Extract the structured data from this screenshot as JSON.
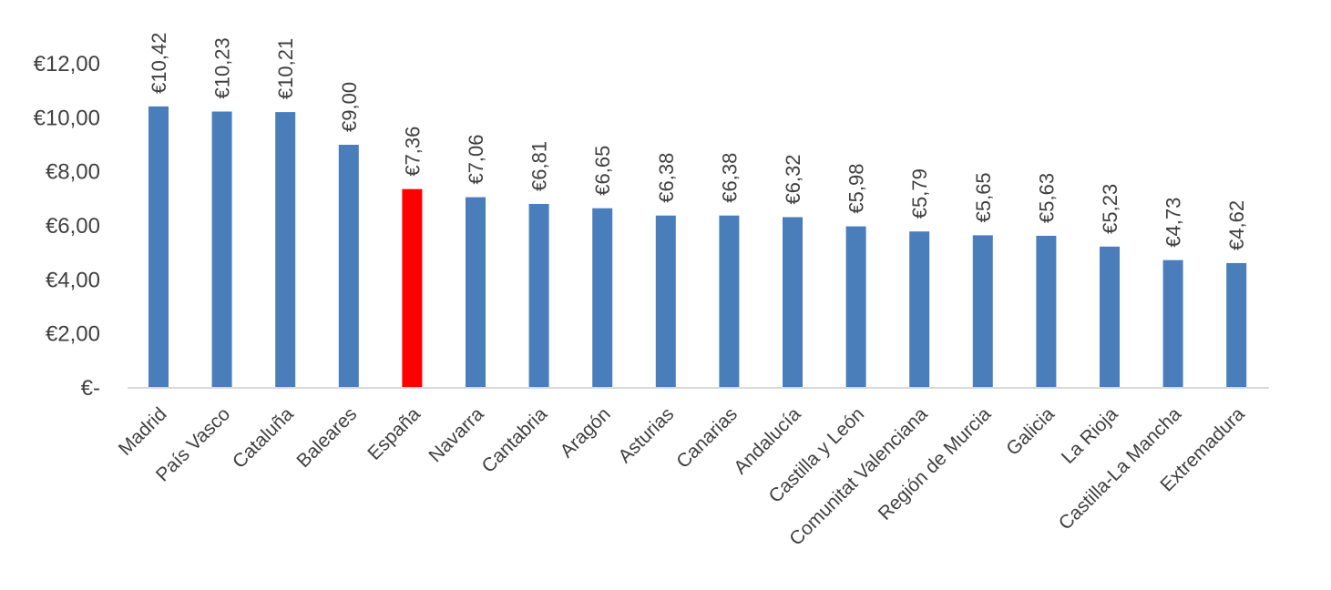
{
  "chart_data": {
    "type": "bar",
    "title": "",
    "xlabel": "",
    "ylabel": "",
    "ylim": [
      0,
      12
    ],
    "yticks": [
      0,
      2,
      4,
      6,
      8,
      10,
      12
    ],
    "ytick_labels": [
      "€-",
      "€2,00",
      "€4,00",
      "€6,00",
      "€8,00",
      "€10,00",
      "€12,00"
    ],
    "categories": [
      "Madrid",
      "País Vasco",
      "Cataluña",
      "Baleares",
      "España",
      "Navarra",
      "Cantabria",
      "Aragón",
      "Asturias",
      "Canarias",
      "Andalucía",
      "Castilla y León",
      "Comunitat Valenciana",
      "Región de Murcia",
      "Galicia",
      "La Rioja",
      "Castilla-La Mancha",
      "Extremadura"
    ],
    "values": [
      10.42,
      10.23,
      10.21,
      9.0,
      7.36,
      7.06,
      6.81,
      6.65,
      6.38,
      6.38,
      6.32,
      5.98,
      5.79,
      5.65,
      5.63,
      5.23,
      4.73,
      4.62
    ],
    "data_labels": [
      "€10,42",
      "€10,23",
      "€10,21",
      "€9,00",
      "€7,36",
      "€7,06",
      "€6,81",
      "€6,65",
      "€6,38",
      "€6,38",
      "€6,32",
      "€5,98",
      "€5,79",
      "€5,65",
      "€5,63",
      "€5,23",
      "€4,73",
      "€4,62"
    ],
    "highlight_category": "España",
    "colors": {
      "bar": "#4a7ebb",
      "highlight": "#ff0000",
      "axis": "#d9d9d9",
      "text": "#404040"
    },
    "grid": false,
    "legend": "none"
  }
}
